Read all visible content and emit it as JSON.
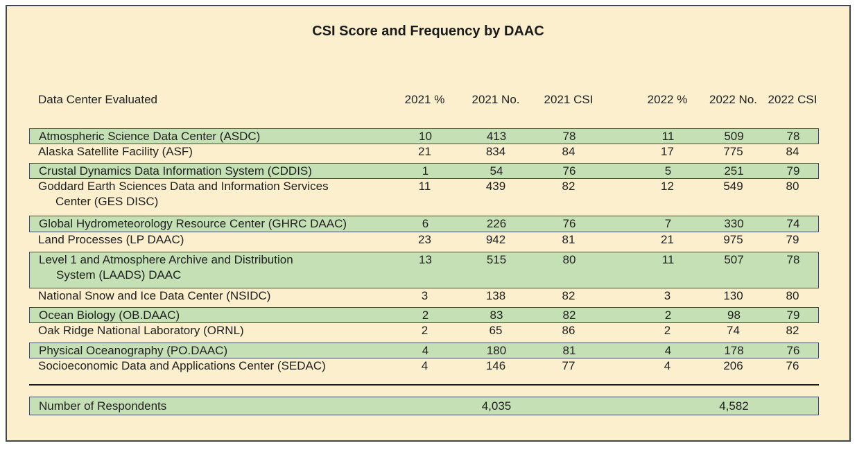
{
  "chart_data": {
    "type": "table",
    "title": "CSI Score and Frequency by DAAC",
    "columns": [
      "Data Center Evaluated",
      "2021 %",
      "2021 No.",
      "2021 CSI",
      "2022 %",
      "2022 No.",
      "2022 CSI"
    ],
    "rows": [
      {
        "name": "Atmospheric Science Data Center (ASDC)",
        "highlight": true,
        "values": [
          "10",
          "413",
          "78",
          "11",
          "509",
          "78"
        ]
      },
      {
        "name": "Alaska Satellite Facility (ASF)",
        "highlight": false,
        "values": [
          "21",
          "834",
          "84",
          "17",
          "775",
          "84"
        ]
      },
      {
        "name": "Crustal Dynamics Data Information System (CDDIS)",
        "highlight": true,
        "values": [
          "1",
          "54",
          "76",
          "5",
          "251",
          "79"
        ]
      },
      {
        "name": "Goddard Earth Sciences Data and Information Services",
        "name_line2": "Center (GES DISC)",
        "highlight": false,
        "values": [
          "11",
          "439",
          "82",
          "12",
          "549",
          "80"
        ]
      },
      {
        "name": "Global Hydrometeorology Resource Center (GHRC DAAC)",
        "highlight": true,
        "values": [
          "6",
          "226",
          "76",
          "7",
          "330",
          "74"
        ]
      },
      {
        "name": "Land Processes (LP DAAC)",
        "highlight": false,
        "values": [
          "23",
          "942",
          "81",
          "21",
          "975",
          "79"
        ]
      },
      {
        "name": "Level 1 and Atmosphere Archive and Distribution",
        "name_line2": "System (LAADS) DAAC",
        "highlight": true,
        "values": [
          "13",
          "515",
          "80",
          "11",
          "507",
          "78"
        ]
      },
      {
        "name": "National Snow and Ice Data Center (NSIDC)",
        "highlight": false,
        "values": [
          "3",
          "138",
          "82",
          "3",
          "130",
          "80"
        ]
      },
      {
        "name": "Ocean Biology (OB.DAAC)",
        "highlight": true,
        "values": [
          "2",
          "83",
          "82",
          "2",
          "98",
          "79"
        ]
      },
      {
        "name": "Oak Ridge National Laboratory (ORNL)",
        "highlight": false,
        "values": [
          "2",
          "65",
          "86",
          "2",
          "74",
          "82"
        ]
      },
      {
        "name": "Physical Oceanography (PO.DAAC)",
        "highlight": true,
        "values": [
          "4",
          "180",
          "81",
          "4",
          "178",
          "76"
        ]
      },
      {
        "name": "Socioeconomic Data and Applications Center (SEDAC)",
        "highlight": false,
        "values": [
          "4",
          "146",
          "77",
          "4",
          "206",
          "76"
        ]
      }
    ],
    "footer": {
      "label": "Number of Respondents",
      "total_2021_no": "4,035",
      "total_2022_no": "4,582"
    }
  },
  "colors": {
    "background": "#FBEFCD",
    "highlight_green": "#C5E0B4",
    "highlight_border": "#3F4A5A",
    "frame_border": "#3D4754",
    "text": "#212121",
    "rule_line": "#1A1A1A"
  }
}
